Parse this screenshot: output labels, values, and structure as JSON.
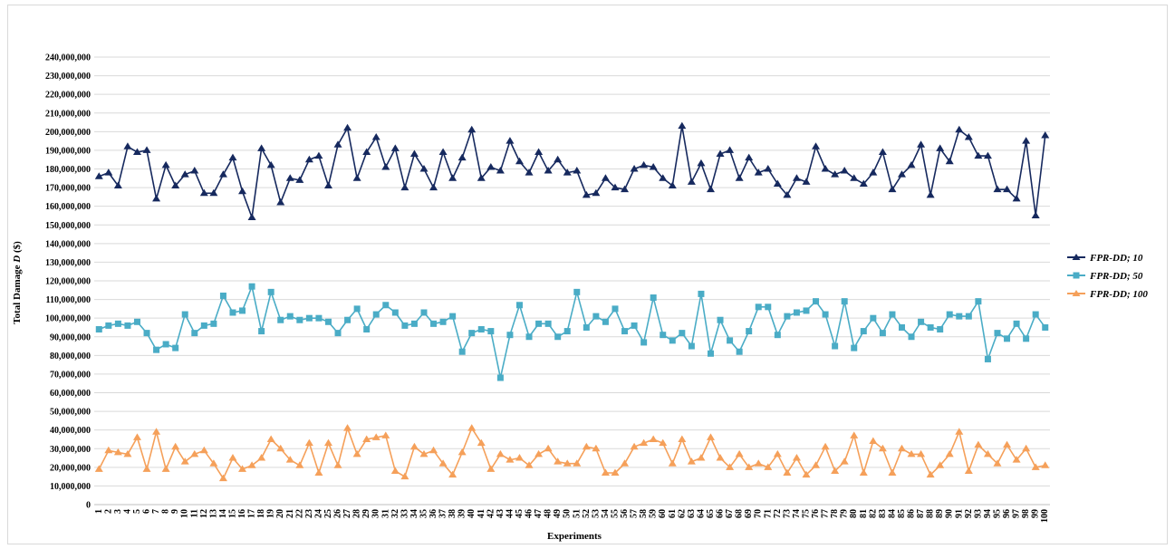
{
  "chart_data": {
    "type": "line",
    "title": "",
    "xlabel": "Experiments",
    "ylabel_main": "Total Damage ",
    "ylabel_var": "D",
    "ylabel_unit": " ($)",
    "ylim": [
      0,
      240000000
    ],
    "ytick_step": 10000000,
    "grid": true,
    "legend_position": "right",
    "x": [
      1,
      2,
      3,
      4,
      5,
      6,
      7,
      8,
      9,
      10,
      11,
      12,
      13,
      14,
      15,
      16,
      17,
      18,
      19,
      20,
      21,
      22,
      23,
      24,
      25,
      26,
      27,
      28,
      29,
      30,
      31,
      32,
      33,
      34,
      35,
      36,
      37,
      38,
      39,
      40,
      41,
      42,
      43,
      44,
      45,
      46,
      47,
      48,
      49,
      50,
      51,
      52,
      53,
      54,
      55,
      56,
      57,
      58,
      59,
      60,
      61,
      62,
      63,
      64,
      65,
      66,
      67,
      68,
      69,
      70,
      71,
      72,
      73,
      74,
      75,
      76,
      77,
      78,
      79,
      80,
      81,
      82,
      83,
      84,
      85,
      86,
      87,
      88,
      89,
      90,
      91,
      92,
      93,
      94,
      95,
      96,
      97,
      98,
      99,
      100
    ],
    "series": [
      {
        "name": "FPR-DD; 10",
        "color": "#16295e",
        "marker": "triangle",
        "values": [
          176000000,
          178000000,
          171000000,
          192000000,
          189000000,
          190000000,
          164000000,
          182000000,
          171000000,
          177000000,
          179000000,
          167000000,
          167000000,
          177000000,
          186000000,
          168000000,
          154000000,
          191000000,
          182000000,
          162000000,
          175000000,
          174000000,
          185000000,
          187000000,
          171000000,
          193000000,
          202000000,
          175000000,
          189000000,
          197000000,
          181000000,
          191000000,
          170000000,
          188000000,
          180000000,
          170000000,
          189000000,
          175000000,
          186000000,
          201000000,
          175000000,
          181000000,
          179000000,
          195000000,
          184000000,
          178000000,
          189000000,
          179000000,
          185000000,
          178000000,
          179000000,
          166000000,
          167000000,
          175000000,
          170000000,
          169000000,
          180000000,
          182000000,
          181000000,
          175000000,
          171000000,
          203000000,
          173000000,
          183000000,
          169000000,
          188000000,
          190000000,
          175000000,
          186000000,
          178000000,
          180000000,
          172000000,
          166000000,
          175000000,
          173000000,
          192000000,
          180000000,
          177000000,
          179000000,
          175000000,
          172000000,
          178000000,
          189000000,
          169000000,
          177000000,
          182000000,
          193000000,
          166000000,
          191000000,
          184000000,
          201000000,
          197000000,
          187000000,
          187000000,
          169000000,
          169000000,
          164000000,
          195000000,
          155000000,
          198000000
        ]
      },
      {
        "name": "FPR-DD; 50",
        "color": "#4aacc6",
        "marker": "square",
        "values": [
          94000000,
          96000000,
          97000000,
          96000000,
          98000000,
          92000000,
          83000000,
          86000000,
          84000000,
          102000000,
          92000000,
          96000000,
          97000000,
          112000000,
          103000000,
          104000000,
          117000000,
          93000000,
          114000000,
          99000000,
          101000000,
          99000000,
          100000000,
          100000000,
          98000000,
          92000000,
          99000000,
          105000000,
          94000000,
          102000000,
          107000000,
          103000000,
          96000000,
          97000000,
          103000000,
          97000000,
          98000000,
          101000000,
          82000000,
          92000000,
          94000000,
          93000000,
          68000000,
          91000000,
          107000000,
          90000000,
          97000000,
          97000000,
          90000000,
          93000000,
          114000000,
          95000000,
          101000000,
          98000000,
          105000000,
          93000000,
          96000000,
          87000000,
          111000000,
          91000000,
          88000000,
          92000000,
          85000000,
          113000000,
          81000000,
          99000000,
          88000000,
          82000000,
          93000000,
          106000000,
          106000000,
          91000000,
          101000000,
          103000000,
          104000000,
          109000000,
          102000000,
          85000000,
          109000000,
          84000000,
          93000000,
          100000000,
          92000000,
          102000000,
          95000000,
          90000000,
          98000000,
          95000000,
          94000000,
          102000000,
          101000000,
          101000000,
          109000000,
          78000000,
          92000000,
          89000000,
          97000000,
          89000000,
          102000000,
          95000000
        ]
      },
      {
        "name": "FPR-DD; 100",
        "color": "#f5a05a",
        "marker": "triangle",
        "values": [
          19000000,
          29000000,
          28000000,
          27000000,
          36000000,
          19000000,
          39000000,
          19000000,
          31000000,
          23000000,
          27000000,
          29000000,
          22000000,
          14000000,
          25000000,
          19000000,
          21000000,
          25000000,
          35000000,
          30000000,
          24000000,
          21000000,
          33000000,
          17000000,
          33000000,
          21000000,
          41000000,
          27000000,
          35000000,
          36000000,
          37000000,
          18000000,
          15000000,
          31000000,
          27000000,
          29000000,
          22000000,
          16000000,
          28000000,
          41000000,
          33000000,
          19000000,
          27000000,
          24000000,
          25000000,
          21000000,
          27000000,
          30000000,
          23000000,
          22000000,
          22000000,
          31000000,
          30000000,
          17000000,
          17000000,
          22000000,
          31000000,
          33000000,
          35000000,
          33000000,
          22000000,
          35000000,
          23000000,
          25000000,
          36000000,
          25000000,
          20000000,
          27000000,
          20000000,
          22000000,
          20000000,
          27000000,
          17000000,
          25000000,
          16000000,
          21000000,
          31000000,
          18000000,
          23000000,
          37000000,
          17000000,
          34000000,
          30000000,
          17000000,
          30000000,
          27000000,
          27000000,
          16000000,
          21000000,
          27000000,
          39000000,
          18000000,
          32000000,
          27000000,
          22000000,
          32000000,
          24000000,
          30000000,
          20000000,
          21000000
        ]
      }
    ]
  }
}
